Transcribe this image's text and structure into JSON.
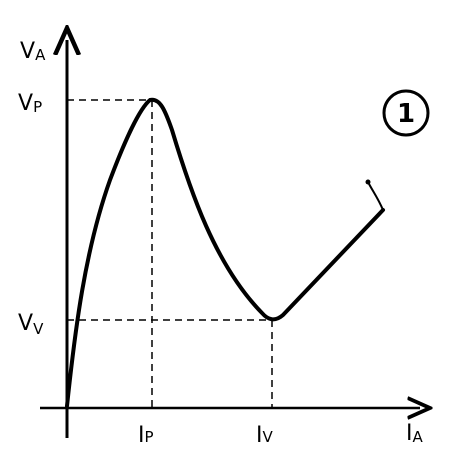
{
  "diagram": {
    "axes": {
      "y_label": {
        "base": "V",
        "sub": "A"
      },
      "x_label": {
        "base": "I",
        "sub": "A"
      }
    },
    "markers": {
      "peak_voltage": {
        "base": "V",
        "sub": "P"
      },
      "valley_voltage": {
        "base": "V",
        "sub": "V"
      },
      "peak_current": {
        "base": "I",
        "sub": "P"
      },
      "valley_current": {
        "base": "I",
        "sub": "V"
      }
    },
    "figure_number": "1"
  }
}
